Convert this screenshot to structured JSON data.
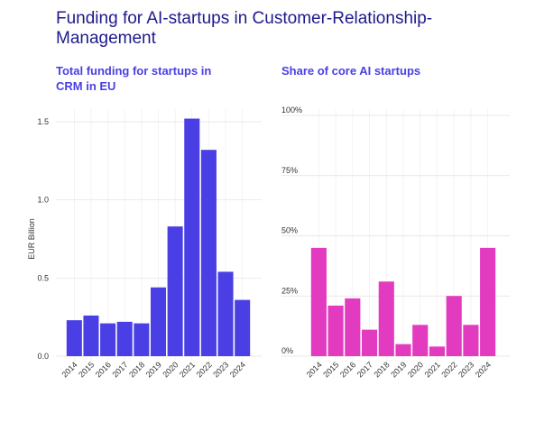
{
  "title": "Funding for AI-startups in Customer-Relationship-Management",
  "colors": {
    "title": "#1e1a8c",
    "left_accent": "#4a3fe4",
    "right_accent": "#e33bbf"
  },
  "chart_data": [
    {
      "type": "bar",
      "title": "Total funding for startups in CRM in EU",
      "ylabel": "EUR Billion",
      "xlabel": "",
      "categories": [
        "2014",
        "2015",
        "2016",
        "2017",
        "2018",
        "2019",
        "2020",
        "2021",
        "2022",
        "2023",
        "2024"
      ],
      "values": [
        0.23,
        0.26,
        0.21,
        0.22,
        0.21,
        0.44,
        0.83,
        1.52,
        1.32,
        0.54,
        0.36
      ],
      "ylim": [
        0,
        1.6
      ],
      "yticks": [
        0,
        0.5,
        1.0,
        1.5
      ],
      "ytick_labels": [
        "0.0",
        "0.5",
        "1.0",
        "1.5"
      ],
      "grid": true,
      "color": "#4a3fe4"
    },
    {
      "type": "bar",
      "title": "Share of core AI startups",
      "ylabel": "",
      "xlabel": "",
      "categories": [
        "2014",
        "2015",
        "2016",
        "2017",
        "2018",
        "2019",
        "2020",
        "2021",
        "2022",
        "2023",
        "2024"
      ],
      "values": [
        45,
        21,
        24,
        11,
        31,
        5,
        13,
        4,
        25,
        13,
        45
      ],
      "ylim": [
        0,
        100
      ],
      "yticks": [
        0,
        25,
        50,
        75,
        100
      ],
      "ytick_labels": [
        "0%",
        "25%",
        "50%",
        "75%",
        "100%"
      ],
      "grid": true,
      "color": "#e33bbf"
    }
  ]
}
